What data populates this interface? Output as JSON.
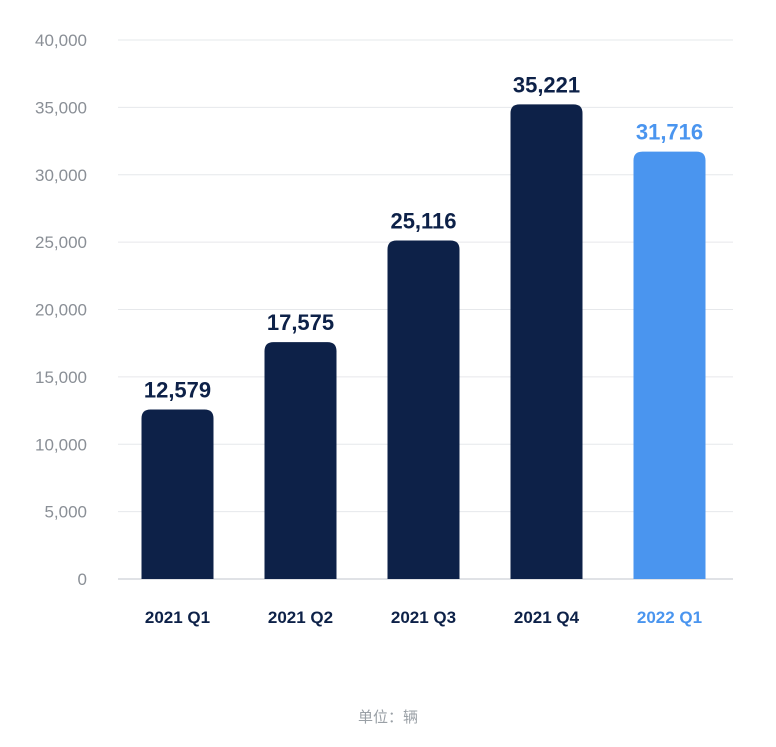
{
  "chart_data": {
    "type": "bar",
    "categories": [
      "2021 Q1",
      "2021 Q2",
      "2021 Q3",
      "2021 Q4",
      "2022 Q1"
    ],
    "values": [
      12579,
      17575,
      25116,
      35221,
      31716
    ],
    "value_labels": [
      "12,579",
      "17,575",
      "25,116",
      "35,221",
      "31,716"
    ],
    "yticks": [
      "0",
      "5,000",
      "10,000",
      "15,000",
      "20,000",
      "25,000",
      "30,000",
      "35,000",
      "40,000"
    ],
    "ylim": [
      0,
      40000
    ],
    "ytick_step": 5000,
    "grid": true,
    "highlight_index": 4,
    "colors": {
      "bar": "#0d2148",
      "highlight": "#4a95ef",
      "label_text": "#0d2148",
      "tick_text": "#8a8f96",
      "grid": "#e6e8eb",
      "baseline": "#d6d9dd"
    }
  },
  "unit_note": "单位：辆"
}
